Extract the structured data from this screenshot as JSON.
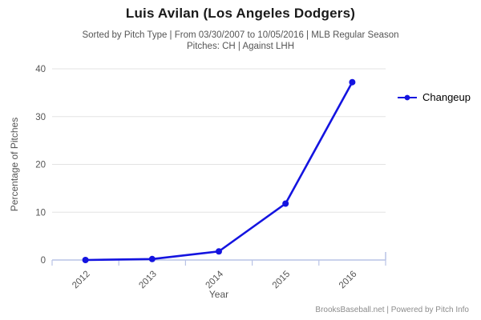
{
  "header": {
    "title": "Luis Avilan (Los Angeles Dodgers)",
    "subtitle_line1": "Sorted by Pitch Type | From 03/30/2007 to 10/05/2016 | MLB Regular Season",
    "subtitle_line2": "Pitches: CH | Against LHH"
  },
  "chart_data": {
    "type": "line",
    "title": "",
    "categories": [
      "2012",
      "2013",
      "2014",
      "2015",
      "2016"
    ],
    "series": [
      {
        "name": "Changeup",
        "color": "#1414E0",
        "values": [
          0.0,
          0.2,
          1.8,
          11.8,
          37.2
        ]
      }
    ],
    "xlabel": "Year",
    "ylabel": "Percentage of Pitches",
    "ylim": [
      0,
      40
    ],
    "yticks": [
      0,
      10,
      20,
      30,
      40
    ],
    "grid": true,
    "legend_position": "right-of-plot",
    "marker": "circle"
  },
  "legend": {
    "items": [
      {
        "label": "Changeup",
        "color": "#1414E0"
      }
    ]
  },
  "footer": {
    "text": "BrooksBaseball.net | Powered by Pitch Info"
  },
  "colors": {
    "title_text": "#1a1a1a",
    "subtitle_text": "#555555",
    "tick_text": "#555555",
    "axis_title_text": "#555555",
    "axis_line": "#b9c3e6",
    "gridline": "#e3e3e3",
    "series_line": "#1414E0",
    "footer_text": "#8c8c8c",
    "background": "#ffffff"
  }
}
